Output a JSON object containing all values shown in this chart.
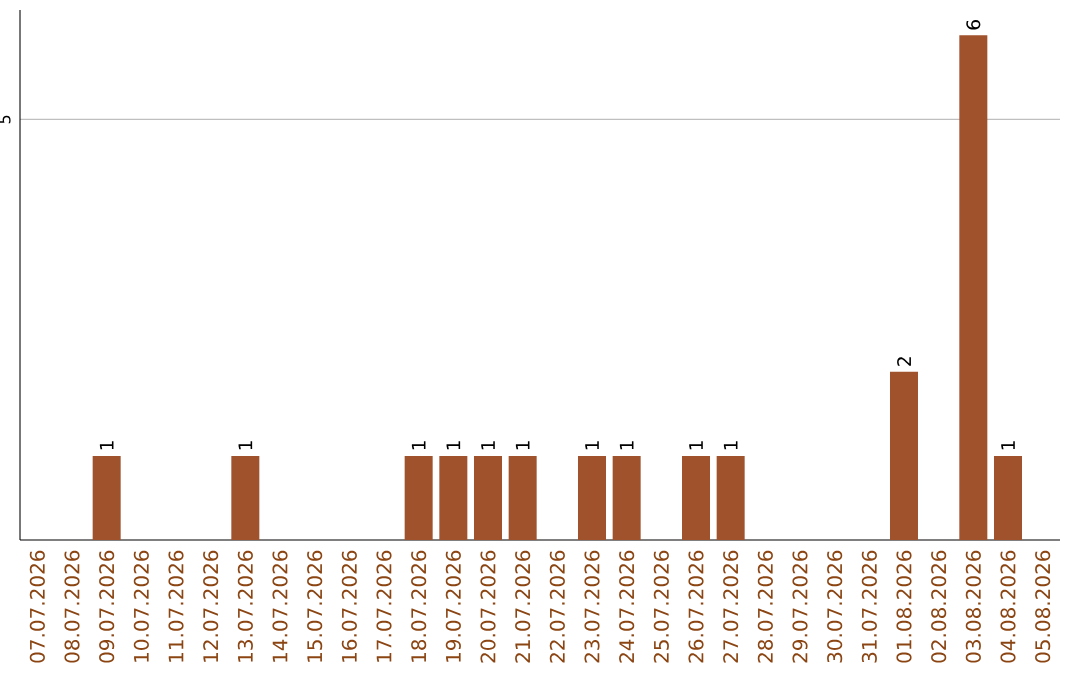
{
  "chart_data": {
    "type": "bar",
    "categories": [
      "07.07.2026",
      "08.07.2026",
      "09.07.2026",
      "10.07.2026",
      "11.07.2026",
      "12.07.2026",
      "13.07.2026",
      "14.07.2026",
      "15.07.2026",
      "16.07.2026",
      "17.07.2026",
      "18.07.2026",
      "19.07.2026",
      "20.07.2026",
      "21.07.2026",
      "22.07.2026",
      "23.07.2026",
      "24.07.2026",
      "25.07.2026",
      "26.07.2026",
      "27.07.2026",
      "28.07.2026",
      "29.07.2026",
      "30.07.2026",
      "31.07.2026",
      "01.08.2026",
      "02.08.2026",
      "03.08.2026",
      "04.08.2026",
      "05.08.2026"
    ],
    "values": [
      0,
      0,
      1,
      0,
      0,
      0,
      1,
      0,
      0,
      0,
      0,
      1,
      1,
      1,
      1,
      0,
      1,
      1,
      0,
      1,
      1,
      0,
      0,
      0,
      0,
      2,
      0,
      6,
      1,
      0
    ],
    "color": "#a0522d",
    "ylim": [
      0,
      6.3
    ],
    "yticks": [
      5
    ],
    "value_labels": [
      null,
      null,
      "1",
      null,
      null,
      null,
      "1",
      null,
      null,
      null,
      null,
      "1",
      "1",
      "1",
      "1",
      null,
      "1",
      "1",
      null,
      "1",
      "1",
      null,
      null,
      null,
      null,
      "2",
      null,
      "6",
      "1",
      null
    ],
    "grid": "y"
  }
}
